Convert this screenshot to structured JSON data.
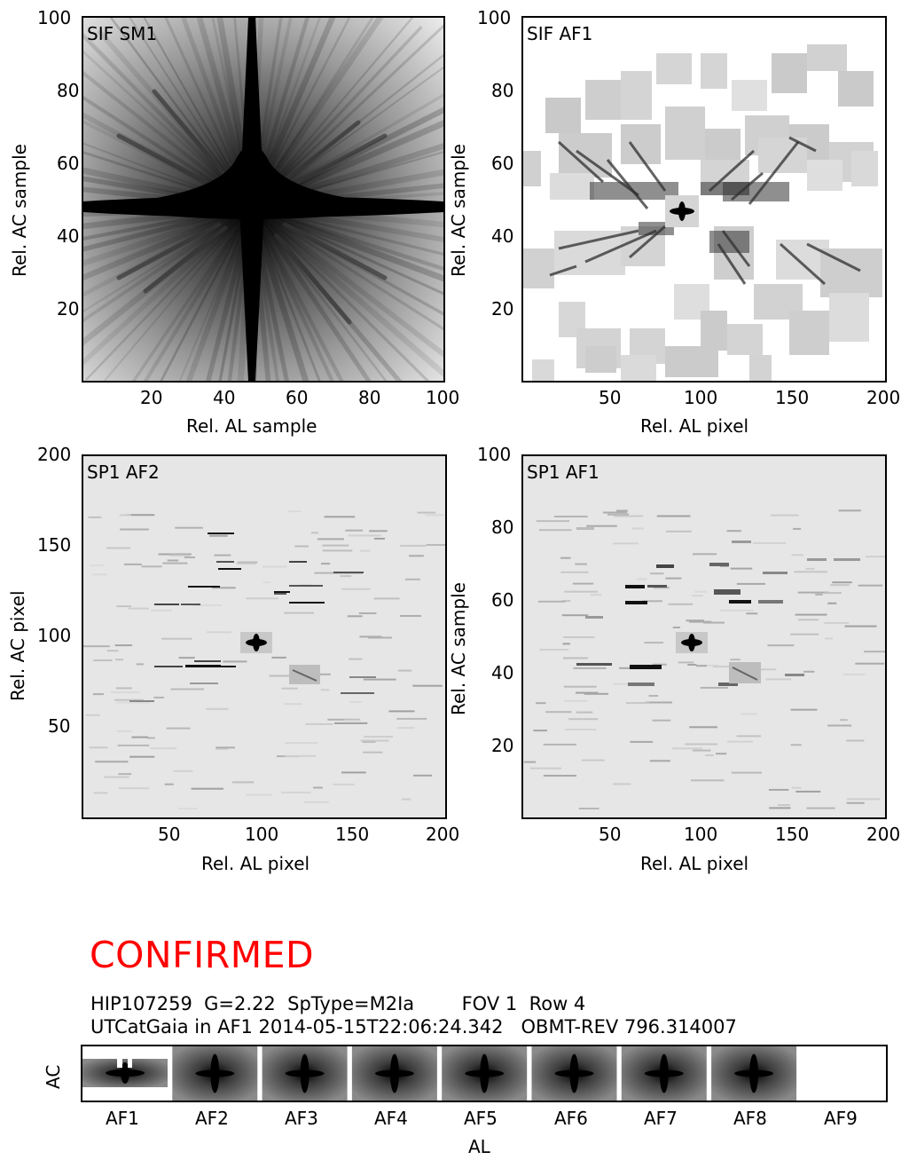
{
  "panels": [
    {
      "title": "SIF SM1",
      "xlabel": "Rel. AL sample",
      "ylabel": "Rel. AC sample",
      "xticks": [
        "20",
        "40",
        "60",
        "80",
        "100"
      ],
      "yticks": [
        "20",
        "40",
        "60",
        "80",
        "100"
      ]
    },
    {
      "title": "SIF AF1",
      "xlabel": "Rel. AL pixel",
      "ylabel": "Rel. AC sample",
      "xticks": [
        "50",
        "100",
        "150",
        "200"
      ],
      "yticks": [
        "20",
        "40",
        "60",
        "80",
        "100"
      ]
    },
    {
      "title": "SP1 AF2",
      "xlabel": "Rel. AL pixel",
      "ylabel": "Rel. AC pixel",
      "xticks": [
        "50",
        "100",
        "150",
        "200"
      ],
      "yticks": [
        "50",
        "100",
        "150",
        "200"
      ]
    },
    {
      "title": "SP1 AF1",
      "xlabel": "Rel. AL pixel",
      "ylabel": "Rel. AC sample",
      "xticks": [
        "50",
        "100",
        "150",
        "200"
      ],
      "yticks": [
        "20",
        "40",
        "60",
        "80",
        "100"
      ]
    }
  ],
  "status": {
    "text": "CONFIRMED",
    "color": "#ff0000"
  },
  "info": {
    "line1": "HIP107259  G=2.22  SpType=M2Ia        FOV 1  Row 4",
    "line2": "UTCatGaia in AF1 2014-05-15T22:06:24.342   OBMT-REV 796.314007"
  },
  "strip": {
    "labels": [
      "AF1",
      "AF2",
      "AF3",
      "AF4",
      "AF5",
      "AF6",
      "AF7",
      "AF8",
      "AF9"
    ],
    "xlabel": "AL",
    "ylabel": "AC"
  },
  "chart_data": [
    {
      "type": "heatmap",
      "title": "SIF SM1",
      "xlabel": "Rel. AL sample",
      "ylabel": "Rel. AC sample",
      "xlim": [
        0,
        100
      ],
      "ylim": [
        0,
        100
      ],
      "description_values": {
        "peak_x": 46,
        "peak_y": 48
      },
      "colormap": "gray_r"
    },
    {
      "type": "heatmap",
      "title": "SIF AF1",
      "xlabel": "Rel. AL pixel",
      "ylabel": "Rel. AC sample",
      "xlim": [
        0,
        200
      ],
      "ylim": [
        0,
        100
      ],
      "colormap": "gray_r"
    },
    {
      "type": "heatmap",
      "title": "SP1 AF2",
      "xlabel": "Rel. AL pixel",
      "ylabel": "Rel. AC pixel",
      "xlim": [
        0,
        200
      ],
      "ylim": [
        0,
        200
      ],
      "colormap": "gray_r"
    },
    {
      "type": "heatmap",
      "title": "SP1 AF1",
      "xlabel": "Rel. AL pixel",
      "ylabel": "Rel. AC sample",
      "xlim": [
        0,
        200
      ],
      "ylim": [
        0,
        100
      ],
      "colormap": "gray_r"
    }
  ],
  "colors": {
    "background_gray": "#e6e6e6",
    "ink": "#000000"
  }
}
